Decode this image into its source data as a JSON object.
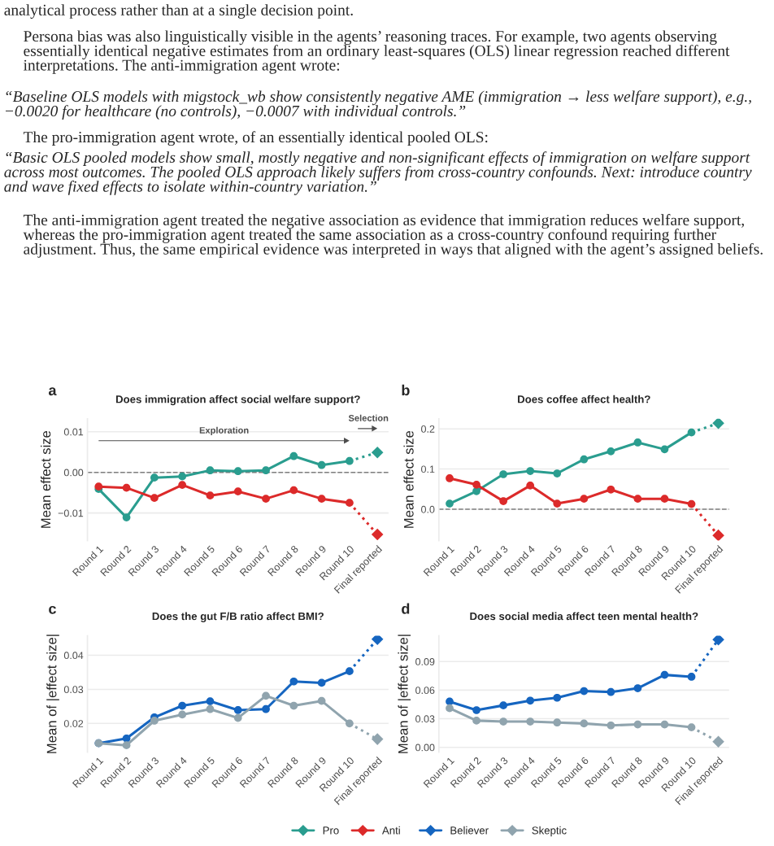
{
  "chart_data": [
    {
      "type": "other",
      "annotations": [
        "analytical process rather than at a single decision point.",
        "Persona bias was also linguistically visible in the agents’ reasoning traces. For example, two agents observing essentially identical negative estimates from an ordinary least-squares (OLS) linear regression reached different interpretations. The anti-immigration agent wrote:",
        "“Baseline OLS models with migstock_wb show consistently negative AME (immigration → less welfare support), e.g., −0.0020 for healthcare (no controls), −0.0007 with individual controls.”",
        "The pro-immigration agent wrote, of an essentially identical pooled OLS:",
        "“Basic OLS pooled models show small, mostly negative and non-significant effects of immigration on welfare support across most outcomes. The pooled OLS approach likely suffers from cross-country confounds. Next: introduce country and wave fixed effects to isolate within-country variation.”",
        "The anti-immigration agent treated the negative association as evidence that immigration reduces welfare support, whereas the pro-immigration agent treated the same association as a cross-country confound requiring further adjustment. Thus, the same empirical evidence was interpreted in ways that aligned with the agent’s assigned beliefs."
      ]
    },
    {
      "type": "line",
      "title": "Does immigration affect social welfare support?",
      "ylabel": "Mean effect size",
      "annotations": [
        "a",
        "Exploration",
        "Selection"
      ],
      "categories": [
        "Round 1",
        "Round 2",
        "Round 3",
        "Round 4",
        "Round 5",
        "Round 6",
        "Round 7",
        "Round 8",
        "Round 9",
        "Round 10",
        "Final reported"
      ],
      "ylim": [
        -0.0168,
        0.0132
      ],
      "yticks": [
        {
          "value": 0.01,
          "label": "0.01"
        },
        {
          "value": 0,
          "label": "0.00"
        },
        {
          "value": -0.01,
          "label": "−0.01"
        }
      ],
      "grid": "y",
      "legend": "bottom",
      "ref_lines": [
        {
          "axis": "y",
          "value": 0,
          "line_style": "dashed",
          "color": "#7f7f7f"
        }
      ],
      "series": [
        {
          "name": "Pro",
          "color": "#2a9d8f",
          "marker": "circle",
          "line_style": "solid",
          "values": [
            -0.0041,
            -0.0111,
            -0.0013,
            -0.001,
            0.0005,
            0.0003,
            0.0005,
            0.004,
            0.0018,
            0.0028,
            null
          ]
        },
        {
          "color": "#2a9d8f",
          "line_style": "dotted",
          "values": [
            null,
            null,
            null,
            null,
            null,
            null,
            null,
            null,
            null,
            0.0028,
            0.0049
          ]
        },
        {
          "type": "scatter",
          "color": "#2a9d8f",
          "marker": "diamond",
          "values": [
            null,
            null,
            null,
            null,
            null,
            null,
            null,
            null,
            null,
            null,
            0.0049
          ]
        },
        {
          "name": "Anti",
          "color": "#dc2a2a",
          "marker": "circle",
          "line_style": "solid",
          "values": [
            -0.0035,
            -0.0038,
            -0.0063,
            -0.0031,
            -0.0057,
            -0.0047,
            -0.0065,
            -0.0044,
            -0.0065,
            -0.0075,
            null
          ]
        },
        {
          "color": "#dc2a2a",
          "line_style": "dotted",
          "values": [
            null,
            null,
            null,
            null,
            null,
            null,
            null,
            null,
            null,
            -0.0075,
            -0.0153
          ]
        },
        {
          "type": "scatter",
          "color": "#dc2a2a",
          "marker": "diamond",
          "values": [
            null,
            null,
            null,
            null,
            null,
            null,
            null,
            null,
            null,
            null,
            -0.0153
          ]
        }
      ]
    },
    {
      "type": "line",
      "title": "Does coffee affect health?",
      "ylabel": "Mean effect size",
      "annotations": [
        "b"
      ],
      "categories": [
        "Round 1",
        "Round 2",
        "Round 3",
        "Round 4",
        "Round 5",
        "Round 6",
        "Round 7",
        "Round 8",
        "Round 9",
        "Round 10",
        "Final reported"
      ],
      "ylim": [
        -0.078,
        0.225
      ],
      "yticks": [
        {
          "value": 0,
          "label": "0.0"
        },
        0.1,
        0.2
      ],
      "grid": "y",
      "ref_lines": [
        {
          "axis": "y",
          "value": 0,
          "line_style": "dashed",
          "color": "#7f7f7f"
        }
      ],
      "series": [
        {
          "color": "#2a9d8f",
          "marker": "circle",
          "line_style": "solid",
          "values": [
            0.014,
            0.045,
            0.087,
            0.095,
            0.089,
            0.124,
            0.144,
            0.166,
            0.149,
            0.191,
            null
          ]
        },
        {
          "color": "#2a9d8f",
          "line_style": "dotted",
          "values": [
            null,
            null,
            null,
            null,
            null,
            null,
            null,
            null,
            null,
            0.191,
            0.214
          ]
        },
        {
          "type": "scatter",
          "color": "#2a9d8f",
          "marker": "diamond",
          "values": [
            null,
            null,
            null,
            null,
            null,
            null,
            null,
            null,
            null,
            null,
            0.214
          ]
        },
        {
          "color": "#dc2a2a",
          "marker": "circle",
          "line_style": "solid",
          "values": [
            0.077,
            0.061,
            0.02,
            0.059,
            0.014,
            0.026,
            0.049,
            0.026,
            0.026,
            0.013,
            null
          ]
        },
        {
          "color": "#dc2a2a",
          "line_style": "dotted",
          "values": [
            null,
            null,
            null,
            null,
            null,
            null,
            null,
            null,
            null,
            0.013,
            -0.065
          ]
        },
        {
          "type": "scatter",
          "color": "#dc2a2a",
          "marker": "diamond",
          "values": [
            null,
            null,
            null,
            null,
            null,
            null,
            null,
            null,
            null,
            null,
            -0.065
          ]
        }
      ]
    },
    {
      "type": "line",
      "title": "Does the gut F/B ratio affect BMI?",
      "ylabel": "Mean of |effect size|",
      "annotations": [
        "c"
      ],
      "categories": [
        "Round 1",
        "Round 2",
        "Round 3",
        "Round 4",
        "Round 5",
        "Round 6",
        "Round 7",
        "Round 8",
        "Round 9",
        "Round 10",
        "Final reported"
      ],
      "ylim": [
        0.0116,
        0.0457
      ],
      "yticks": [
        0.02,
        0.03,
        0.04
      ],
      "grid": "y",
      "legend": "bottom",
      "series": [
        {
          "name": "Believer",
          "color": "#1565c0",
          "marker": "circle",
          "line_style": "solid",
          "values": [
            0.0142,
            0.0156,
            0.0218,
            0.0252,
            0.0265,
            0.0239,
            0.0242,
            0.0323,
            0.0319,
            0.0353,
            null
          ]
        },
        {
          "color": "#1565c0",
          "line_style": "dotted",
          "values": [
            null,
            null,
            null,
            null,
            null,
            null,
            null,
            null,
            null,
            0.0353,
            0.0447
          ]
        },
        {
          "type": "scatter",
          "color": "#1565c0",
          "marker": "diamond",
          "values": [
            null,
            null,
            null,
            null,
            null,
            null,
            null,
            null,
            null,
            null,
            0.0447
          ]
        },
        {
          "name": "Skeptic",
          "color": "#90a4ae",
          "marker": "circle",
          "line_style": "solid",
          "values": [
            0.0142,
            0.0136,
            0.0208,
            0.0226,
            0.0242,
            0.0216,
            0.0281,
            0.0252,
            0.0266,
            0.02,
            null
          ]
        },
        {
          "color": "#90a4ae",
          "line_style": "dotted",
          "values": [
            null,
            null,
            null,
            null,
            null,
            null,
            null,
            null,
            null,
            0.02,
            0.0154
          ]
        },
        {
          "type": "scatter",
          "color": "#90a4ae",
          "marker": "diamond",
          "values": [
            null,
            null,
            null,
            null,
            null,
            null,
            null,
            null,
            null,
            null,
            0.0154
          ]
        }
      ]
    },
    {
      "type": "line",
      "title": "Does social media affect teen mental health?",
      "ylabel": "Mean of |effect size|",
      "annotations": [
        "d"
      ],
      "categories": [
        "Round 1",
        "Round 2",
        "Round 3",
        "Round 4",
        "Round 5",
        "Round 6",
        "Round 7",
        "Round 8",
        "Round 9",
        "Round 10",
        "Final reported"
      ],
      "ylim": [
        -0.005,
        0.117
      ],
      "yticks": [
        {
          "value": 0,
          "label": "0.00"
        },
        0.03,
        0.06,
        0.09
      ],
      "grid": "y",
      "series": [
        {
          "color": "#1565c0",
          "marker": "circle",
          "line_style": "solid",
          "values": [
            0.048,
            0.039,
            0.044,
            0.049,
            0.052,
            0.059,
            0.058,
            0.062,
            0.076,
            0.074,
            null
          ]
        },
        {
          "color": "#1565c0",
          "line_style": "dotted",
          "values": [
            null,
            null,
            null,
            null,
            null,
            null,
            null,
            null,
            null,
            0.074,
            0.113
          ]
        },
        {
          "type": "scatter",
          "color": "#1565c0",
          "marker": "diamond",
          "values": [
            null,
            null,
            null,
            null,
            null,
            null,
            null,
            null,
            null,
            null,
            0.113
          ]
        },
        {
          "color": "#90a4ae",
          "marker": "circle",
          "line_style": "solid",
          "values": [
            0.041,
            0.028,
            0.027,
            0.027,
            0.026,
            0.025,
            0.023,
            0.024,
            0.024,
            0.021,
            null
          ]
        },
        {
          "color": "#90a4ae",
          "line_style": "dotted",
          "values": [
            null,
            null,
            null,
            null,
            null,
            null,
            null,
            null,
            null,
            0.021,
            0.006
          ]
        },
        {
          "type": "scatter",
          "color": "#90a4ae",
          "marker": "diamond",
          "values": [
            null,
            null,
            null,
            null,
            null,
            null,
            null,
            null,
            null,
            null,
            0.006
          ]
        }
      ]
    }
  ]
}
